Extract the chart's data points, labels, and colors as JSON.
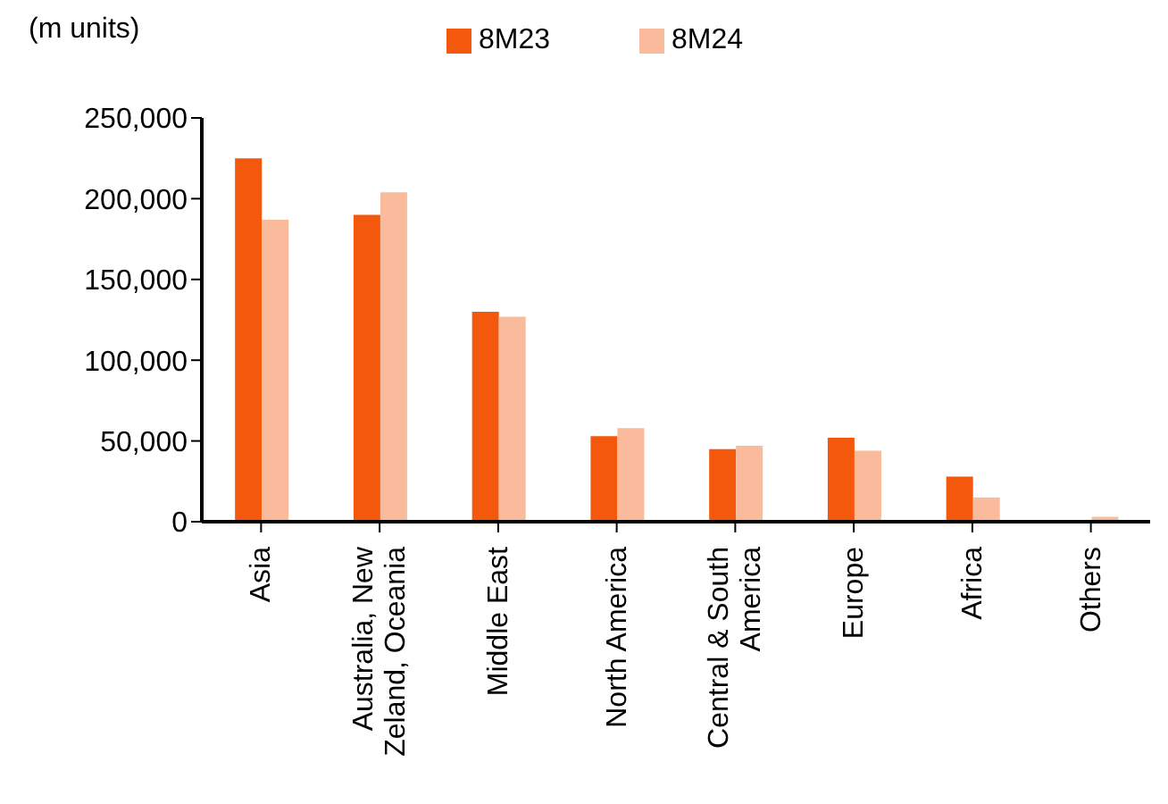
{
  "chart_data": {
    "type": "bar",
    "ylabel": "(m units)",
    "categories": [
      "Asia",
      "Australia, New\nZeland, Oceania",
      "Middle East",
      "North America",
      "Central & South\nAmerica",
      "Europe",
      "Africa",
      "Others"
    ],
    "series": [
      {
        "name": "8M23",
        "color": "#f4580c",
        "values": [
          225000,
          190000,
          130000,
          53000,
          45000,
          52000,
          28000,
          0
        ]
      },
      {
        "name": "8M24",
        "color": "#f9bb9b",
        "values": [
          187000,
          204000,
          127000,
          58000,
          47000,
          44000,
          15000,
          3000
        ]
      }
    ],
    "ylim": [
      0,
      250000
    ],
    "yticks": [
      {
        "value": 0,
        "label": "0"
      },
      {
        "value": 50000,
        "label": "50,000"
      },
      {
        "value": 100000,
        "label": "100,000"
      },
      {
        "value": 150000,
        "label": "150,000"
      },
      {
        "value": 200000,
        "label": "200,000"
      },
      {
        "value": 250000,
        "label": "250,000"
      }
    ],
    "grid": false,
    "legend": "top"
  }
}
